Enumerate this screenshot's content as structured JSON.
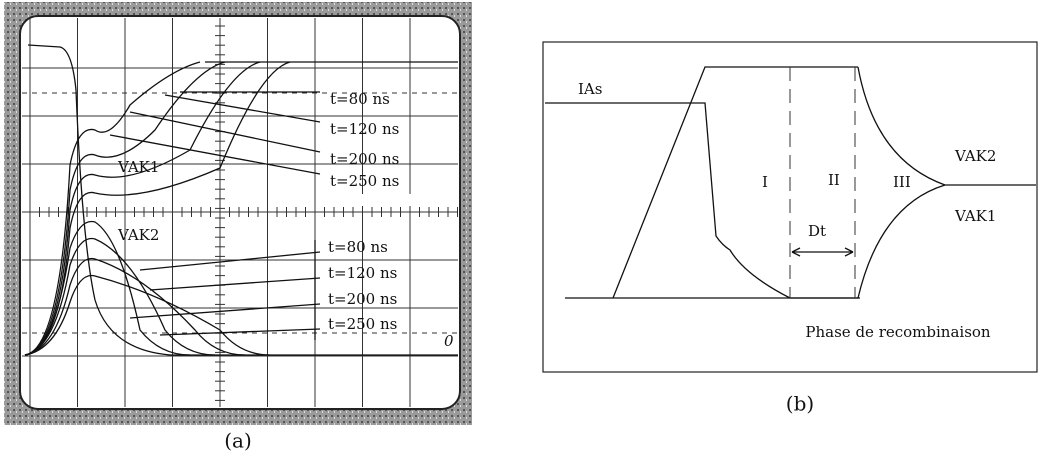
{
  "panel_a": {
    "label": "(a)",
    "upper_labels": [
      "t=80 ns",
      "t=120 ns",
      "t=200 ns",
      "t=250 ns"
    ],
    "lower_labels": [
      "t=80 ns",
      "t=120 ns",
      "t=200 ns",
      "t=250 ns"
    ],
    "vak1": "VAK1",
    "vak2": "VAK2",
    "zero": "0"
  },
  "panel_b": {
    "label": "(b)",
    "ias": "IAs",
    "regions": [
      "I",
      "II",
      "III"
    ],
    "vak2": "VAK2",
    "vak1": "VAK1",
    "dt": "Dt",
    "phase": "Phase de recombinaison"
  }
}
